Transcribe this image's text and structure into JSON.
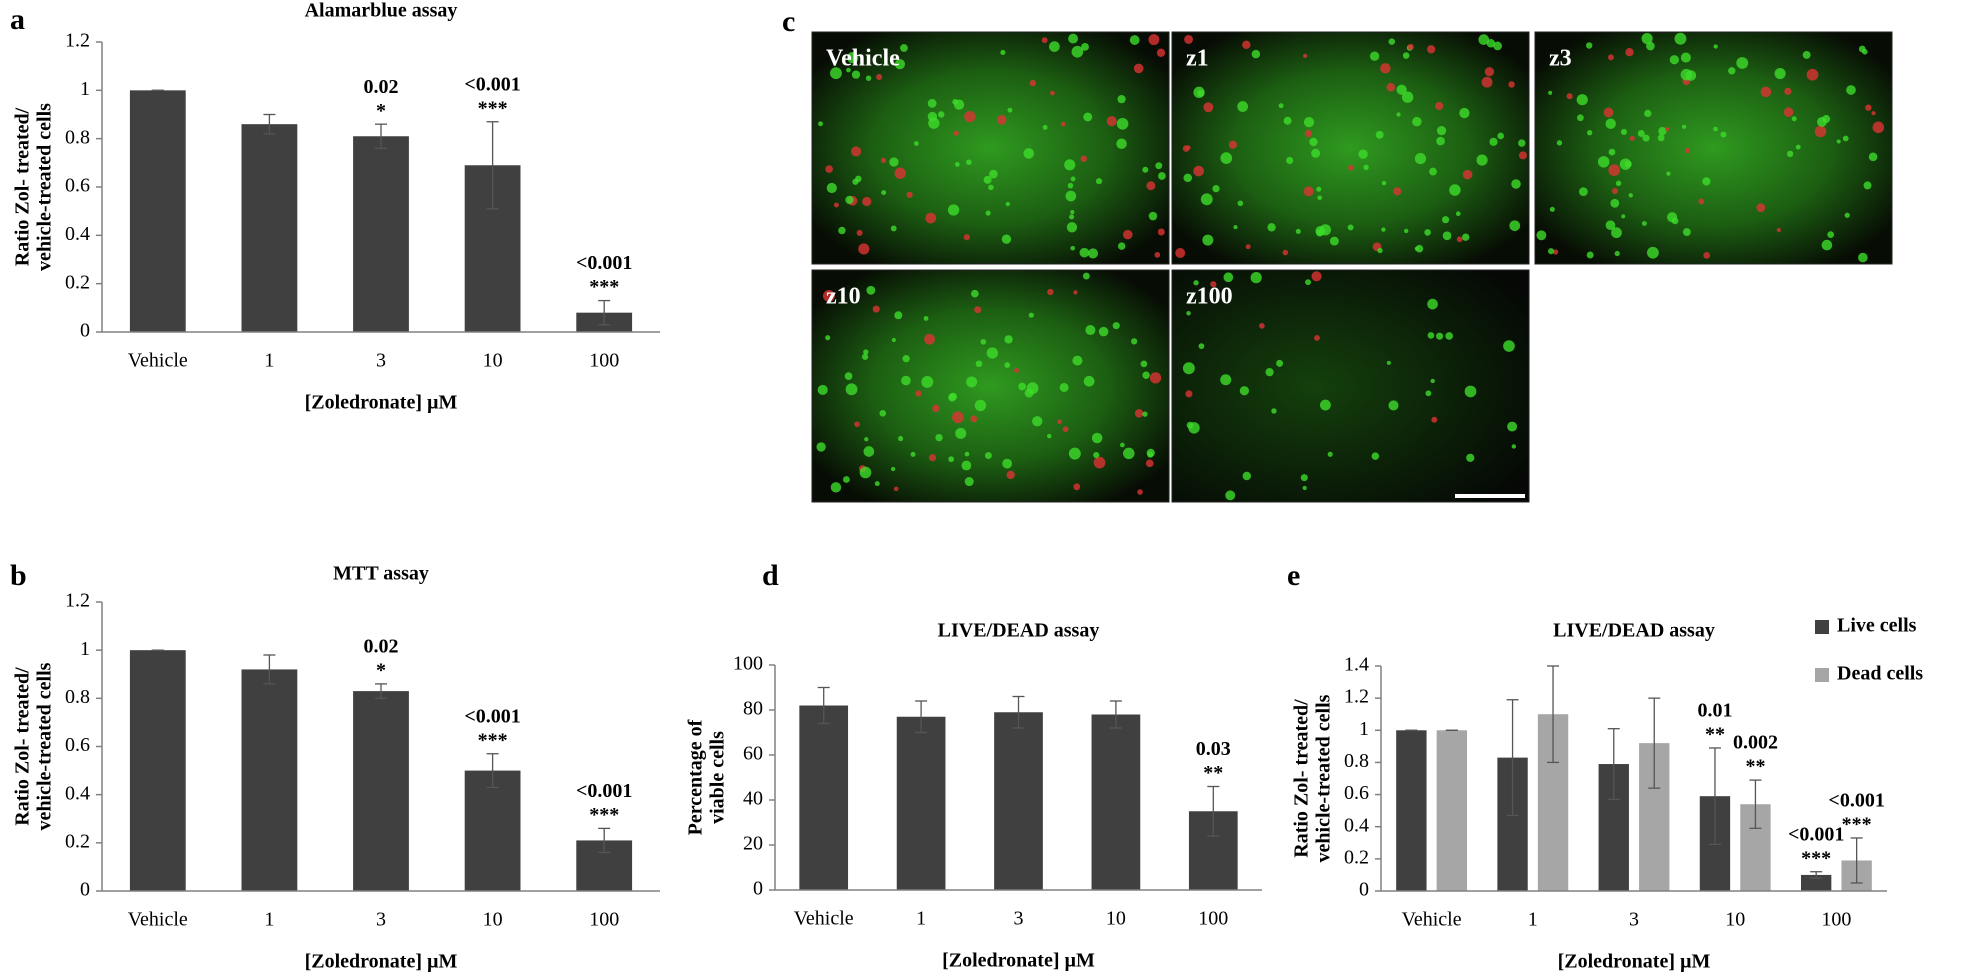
{
  "chart_data": [
    {
      "type": "bar",
      "label": "a",
      "title": "Alamarblue assay",
      "y_label": [
        "Ratio Zol- treated/",
        "vehicle-treated cells"
      ],
      "x_label": "[Zoledronate] µM",
      "categories": [
        "Vehicle",
        "1",
        "3",
        "10",
        "100"
      ],
      "series": [
        {
          "color": "#404040",
          "values": [
            1,
            0.86,
            0.81,
            0.69,
            0.08
          ],
          "errors": [
            0,
            0.04,
            0.05,
            0.18,
            0.05
          ],
          "p_labels": [
            null,
            null,
            "0.02",
            "<0.001",
            "<0.001"
          ],
          "stars": [
            null,
            null,
            "*",
            "***",
            "***"
          ]
        }
      ],
      "ylim": [
        0,
        1.2
      ],
      "yticks": [
        0,
        0.2,
        0.4,
        0.6,
        0.8,
        1,
        1.2
      ]
    },
    {
      "type": "bar",
      "label": "b",
      "title": "MTT assay",
      "y_label": [
        "Ratio Zol- treated/",
        "vehicle-treated cells"
      ],
      "x_label": "[Zoledronate] µM",
      "categories": [
        "Vehicle",
        "1",
        "3",
        "10",
        "100"
      ],
      "series": [
        {
          "color": "#404040",
          "values": [
            1,
            0.92,
            0.83,
            0.5,
            0.21
          ],
          "errors": [
            0,
            0.06,
            0.03,
            0.07,
            0.05
          ],
          "p_labels": [
            null,
            null,
            "0.02",
            "<0.001",
            "<0.001"
          ],
          "stars": [
            null,
            null,
            "*",
            "***",
            "***"
          ]
        }
      ],
      "ylim": [
        0,
        1.2
      ],
      "yticks": [
        0,
        0.2,
        0.4,
        0.6,
        0.8,
        1,
        1.2
      ]
    },
    {
      "type": "bar",
      "label": "d",
      "title": "LIVE/DEAD assay",
      "y_label": [
        "Percentage of",
        "viable cells"
      ],
      "x_label": "[Zoledronate] µM",
      "categories": [
        "Vehicle",
        "1",
        "3",
        "10",
        "100"
      ],
      "series": [
        {
          "color": "#404040",
          "values": [
            82,
            77,
            79,
            78,
            35
          ],
          "errors": [
            8,
            7,
            7,
            6,
            11
          ],
          "p_labels": [
            null,
            null,
            null,
            null,
            "0.03"
          ],
          "stars": [
            null,
            null,
            null,
            null,
            "**"
          ]
        }
      ],
      "ylim": [
        0,
        100
      ],
      "yticks": [
        0,
        20,
        40,
        60,
        80,
        100
      ]
    },
    {
      "type": "bar",
      "label": "e",
      "title": "LIVE/DEAD assay",
      "y_label": [
        "Ratio Zol- treated/",
        "vehicle-treated cells"
      ],
      "x_label": "[Zoledronate] µM",
      "categories": [
        "Vehicle",
        "1",
        "3",
        "10",
        "100"
      ],
      "series": [
        {
          "name": "Live cells",
          "color": "#404040",
          "values": [
            1,
            0.83,
            0.79,
            0.59,
            0.1
          ],
          "errors": [
            0,
            0.36,
            0.22,
            0.3,
            0.02
          ],
          "p_labels": [
            null,
            null,
            null,
            "0.01",
            "<0.001"
          ],
          "stars": [
            null,
            null,
            null,
            "**",
            "***"
          ]
        },
        {
          "name": "Dead cells",
          "color": "#a6a6a6",
          "values": [
            1,
            1.1,
            0.92,
            0.54,
            0.19
          ],
          "errors": [
            0,
            0.3,
            0.28,
            0.15,
            0.14
          ],
          "p_labels": [
            null,
            null,
            null,
            "0.002",
            "<0.001"
          ],
          "stars": [
            null,
            null,
            null,
            "**",
            "***"
          ]
        }
      ],
      "ylim": [
        0,
        1.4
      ],
      "yticks": [
        0,
        0.2,
        0.4,
        0.6,
        0.8,
        1,
        1.2,
        1.4
      ]
    }
  ],
  "micrographs": {
    "label": "c",
    "panels": [
      "Vehicle",
      "z1",
      "z3",
      "z10",
      "z100"
    ]
  }
}
